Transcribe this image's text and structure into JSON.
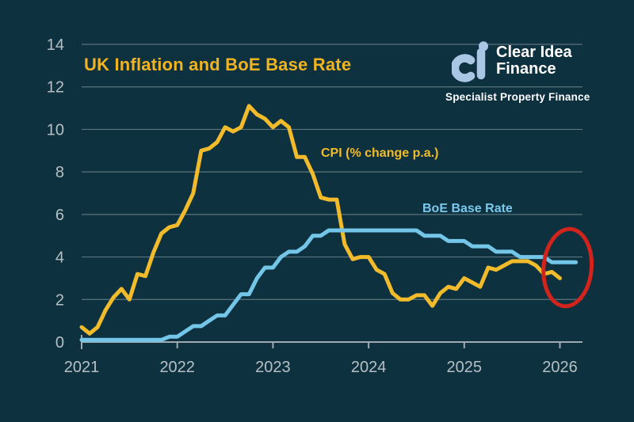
{
  "colors": {
    "background": "#0d313f",
    "title": "#f0b322",
    "cpi_line": "#f1bb2b",
    "boe_line": "#74c6e9",
    "boe_label": "#7ac9ec",
    "axis": "#9fabb0",
    "tick_label": "#b6c0c4",
    "grid": "rgba(185,200,206,0.45)",
    "annotation": "#d2231c",
    "logo_mark": "#a9c6e4",
    "logo_text": "#ffffff"
  },
  "logo": {
    "monogram": "ci",
    "name_line1": "Clear Idea",
    "name_line2": "Finance",
    "tagline": "Specialist Property Finance"
  },
  "chart_data": {
    "type": "line",
    "title": "UK Inflation and BoE Base Rate",
    "xlabel": "",
    "ylabel": "",
    "ylim": [
      0,
      14
    ],
    "y_ticks": [
      0,
      2,
      4,
      6,
      8,
      10,
      12,
      14
    ],
    "x_tick_labels": [
      "2021",
      "2022",
      "2023",
      "2024",
      "2025",
      "2026"
    ],
    "x_start_year": 2021,
    "x_months_per_point": 1,
    "grid": "horizontal-only",
    "series": [
      {
        "name": "CPI (% change p.a.)",
        "color": "#f1bb2b",
        "start": "2021-01",
        "values": [
          0.7,
          0.4,
          0.7,
          1.5,
          2.1,
          2.5,
          2.0,
          3.2,
          3.1,
          4.2,
          5.1,
          5.4,
          5.5,
          6.2,
          7.0,
          9.0,
          9.1,
          9.4,
          10.1,
          9.9,
          10.1,
          11.1,
          10.7,
          10.5,
          10.1,
          10.4,
          10.1,
          8.7,
          8.7,
          7.9,
          6.8,
          6.7,
          6.7,
          4.6,
          3.9,
          4.0,
          4.0,
          3.4,
          3.2,
          2.3,
          2.0,
          2.0,
          2.2,
          2.2,
          1.7,
          2.3,
          2.6,
          2.5,
          3.0,
          2.8,
          2.6,
          3.5,
          3.4,
          3.6,
          3.8,
          3.8,
          3.8,
          3.6,
          3.2,
          3.3,
          3.0
        ]
      },
      {
        "name": "BoE Base Rate",
        "color": "#74c6e9",
        "start": "2021-01",
        "values": [
          0.1,
          0.1,
          0.1,
          0.1,
          0.1,
          0.1,
          0.1,
          0.1,
          0.1,
          0.1,
          0.1,
          0.25,
          0.25,
          0.5,
          0.75,
          0.75,
          1.0,
          1.25,
          1.25,
          1.75,
          2.25,
          2.25,
          3.0,
          3.5,
          3.5,
          4.0,
          4.25,
          4.25,
          4.5,
          5.0,
          5.0,
          5.25,
          5.25,
          5.25,
          5.25,
          5.25,
          5.25,
          5.25,
          5.25,
          5.25,
          5.25,
          5.25,
          5.25,
          5.0,
          5.0,
          5.0,
          4.75,
          4.75,
          4.75,
          4.5,
          4.5,
          4.5,
          4.25,
          4.25,
          4.25,
          4.0,
          4.0,
          4.0,
          4.0,
          3.75,
          3.75,
          3.75,
          3.75
        ]
      }
    ],
    "annotation": {
      "shape": "ellipse",
      "purpose": "highlights latest CPI and BoE Base Rate values near 2026",
      "center_year": 2026.08,
      "center_value": 3.5,
      "rx_years": 0.25,
      "ry_units": 1.82,
      "rotation_deg": 5,
      "color": "#d2231c"
    }
  }
}
